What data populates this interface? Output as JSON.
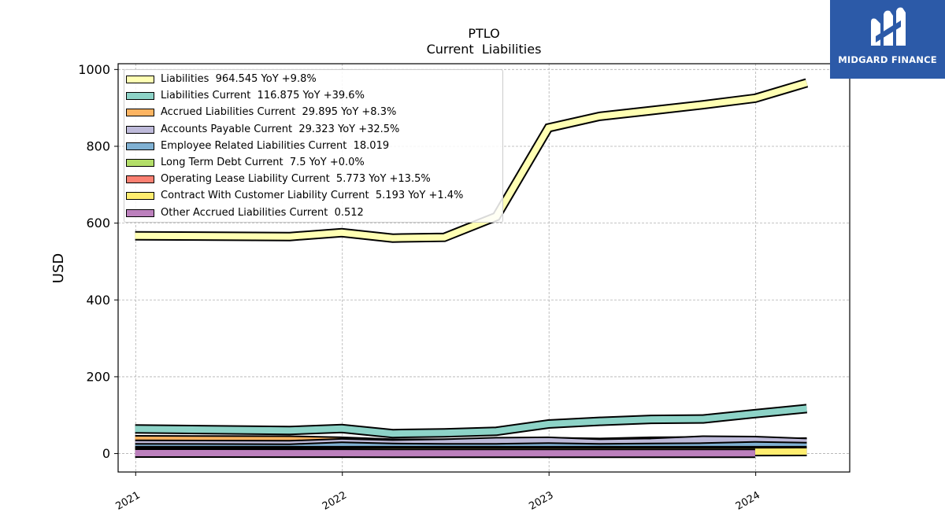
{
  "logo": {
    "text": "MIDGARD FINANCE"
  },
  "chart_data": {
    "type": "area",
    "title": "PTLO",
    "subtitle": "Current  Liabilities",
    "ylabel": "USD",
    "ylim": [
      -48,
      1015
    ],
    "xlim": [
      "2020-12-01",
      "2024-06-15"
    ],
    "yticks": [
      0,
      200,
      400,
      600,
      800,
      1000
    ],
    "xticks": [
      {
        "label": "2021",
        "date": "2021-01-01"
      },
      {
        "label": "2022",
        "date": "2022-01-01"
      },
      {
        "label": "2023",
        "date": "2023-01-01"
      },
      {
        "label": "2024",
        "date": "2024-01-01"
      }
    ],
    "grid": true,
    "legend_position": "top-left",
    "series": [
      {
        "name": "Liabilities  964.545 YoY +9.8%",
        "color": "#ffffb3",
        "dates": [
          "2020-12-31",
          "2021-09-30",
          "2021-12-31",
          "2022-03-31",
          "2022-06-30",
          "2022-09-30",
          "2022-12-31",
          "2023-03-31",
          "2023-06-30",
          "2023-09-30",
          "2023-12-31",
          "2024-03-31"
        ],
        "values": [
          567,
          565,
          575,
          561,
          563,
          617,
          848,
          878,
          893,
          908,
          925,
          965
        ]
      },
      {
        "name": "Liabilities Current  116.875 YoY +39.6%",
        "color": "#8dd3c7",
        "dates": [
          "2020-12-31",
          "2021-09-30",
          "2021-12-31",
          "2022-03-31",
          "2022-06-30",
          "2022-09-30",
          "2022-12-31",
          "2023-03-31",
          "2023-06-30",
          "2023-09-30",
          "2023-12-31",
          "2024-03-31"
        ],
        "values": [
          64,
          60,
          65,
          52,
          54,
          58,
          77,
          84,
          89,
          90,
          104,
          117
        ]
      },
      {
        "name": "Accrued Liabilities Current  29.895 YoY +8.3%",
        "color": "#fdb462",
        "dates": [
          "2020-12-31",
          "2021-09-30",
          "2021-12-31",
          "2022-03-31",
          "2022-06-30",
          "2022-09-30",
          "2022-12-31",
          "2023-03-31",
          "2023-06-30",
          "2023-09-30",
          "2023-12-31",
          "2024-03-31"
        ],
        "values": [
          36,
          35,
          32,
          27,
          27,
          28,
          31,
          29,
          32,
          33,
          28,
          30
        ]
      },
      {
        "name": "Accounts Payable Current  29.323 YoY +32.5%",
        "color": "#bebada",
        "dates": [
          "2020-12-31",
          "2021-09-30",
          "2021-12-31",
          "2022-03-31",
          "2022-06-30",
          "2022-09-30",
          "2022-12-31",
          "2023-03-31",
          "2023-06-30",
          "2023-09-30",
          "2023-12-31",
          "2024-03-31"
        ],
        "values": [
          24,
          23,
          28,
          25,
          27,
          31,
          32,
          27,
          29,
          35,
          34,
          29
        ]
      },
      {
        "name": "Employee Related Liabilities Current  18.019",
        "color": "#80b1d3",
        "dates": [
          "2020-12-31",
          "2021-09-30",
          "2021-12-31",
          "2022-03-31",
          "2022-06-30",
          "2022-09-30",
          "2022-12-31",
          "2023-03-31",
          "2023-06-30",
          "2023-09-30",
          "2023-12-31",
          "2024-03-31"
        ],
        "values": [
          15,
          14,
          19,
          16,
          15,
          15,
          17,
          15,
          16,
          17,
          20,
          18
        ]
      },
      {
        "name": "Long Term Debt Current  7.5 YoY +0.0%",
        "color": "#b3de69",
        "dates": [
          "2020-12-31",
          "2021-09-30",
          "2021-12-31",
          "2022-03-31",
          "2022-06-30",
          "2022-09-30",
          "2022-12-31",
          "2023-03-31",
          "2023-06-30",
          "2023-09-30",
          "2023-12-31",
          "2024-03-31"
        ],
        "values": [
          7.5,
          7.5,
          7.5,
          7.5,
          7.5,
          7.5,
          7.5,
          7.5,
          7.5,
          7.5,
          7.5,
          7.5
        ]
      },
      {
        "name": "Operating Lease Liability Current  5.773 YoY +13.5%",
        "color": "#fb8072",
        "dates": [
          "2020-12-31",
          "2021-09-30",
          "2021-12-31",
          "2022-03-31",
          "2022-06-30",
          "2022-09-30",
          "2022-12-31",
          "2023-03-31",
          "2023-06-30",
          "2023-09-30",
          "2023-12-31",
          "2024-03-31"
        ],
        "values": [
          4.5,
          4.7,
          4.8,
          4.9,
          5.0,
          5.1,
          5.1,
          5.2,
          5.3,
          5.4,
          5.6,
          5.8
        ]
      },
      {
        "name": "Contract With Customer Liability Current  5.193 YoY +1.4%",
        "color": "#ffed6f",
        "dates": [
          "2020-12-31",
          "2021-09-30",
          "2021-12-31",
          "2022-03-31",
          "2022-06-30",
          "2022-09-30",
          "2022-12-31",
          "2023-03-31",
          "2023-06-30",
          "2023-09-30",
          "2023-12-31",
          "2024-03-31"
        ],
        "values": [
          4,
          4,
          4.5,
          5,
          5,
          5,
          5.1,
          5.1,
          5.1,
          5.1,
          5.1,
          5.2
        ]
      },
      {
        "name": "Other Accrued Liabilities Current  0.512",
        "color": "#bc80bd",
        "dates": [
          "2020-12-31",
          "2021-09-30",
          "2021-12-31",
          "2022-03-31",
          "2022-06-30",
          "2022-09-30",
          "2022-12-31",
          "2023-03-31",
          "2023-06-30",
          "2023-09-30",
          "2023-12-31"
        ],
        "values": [
          1.2,
          1.0,
          0.9,
          0.8,
          0.8,
          0.7,
          0.7,
          0.6,
          0.6,
          0.5,
          0.5
        ]
      }
    ]
  }
}
